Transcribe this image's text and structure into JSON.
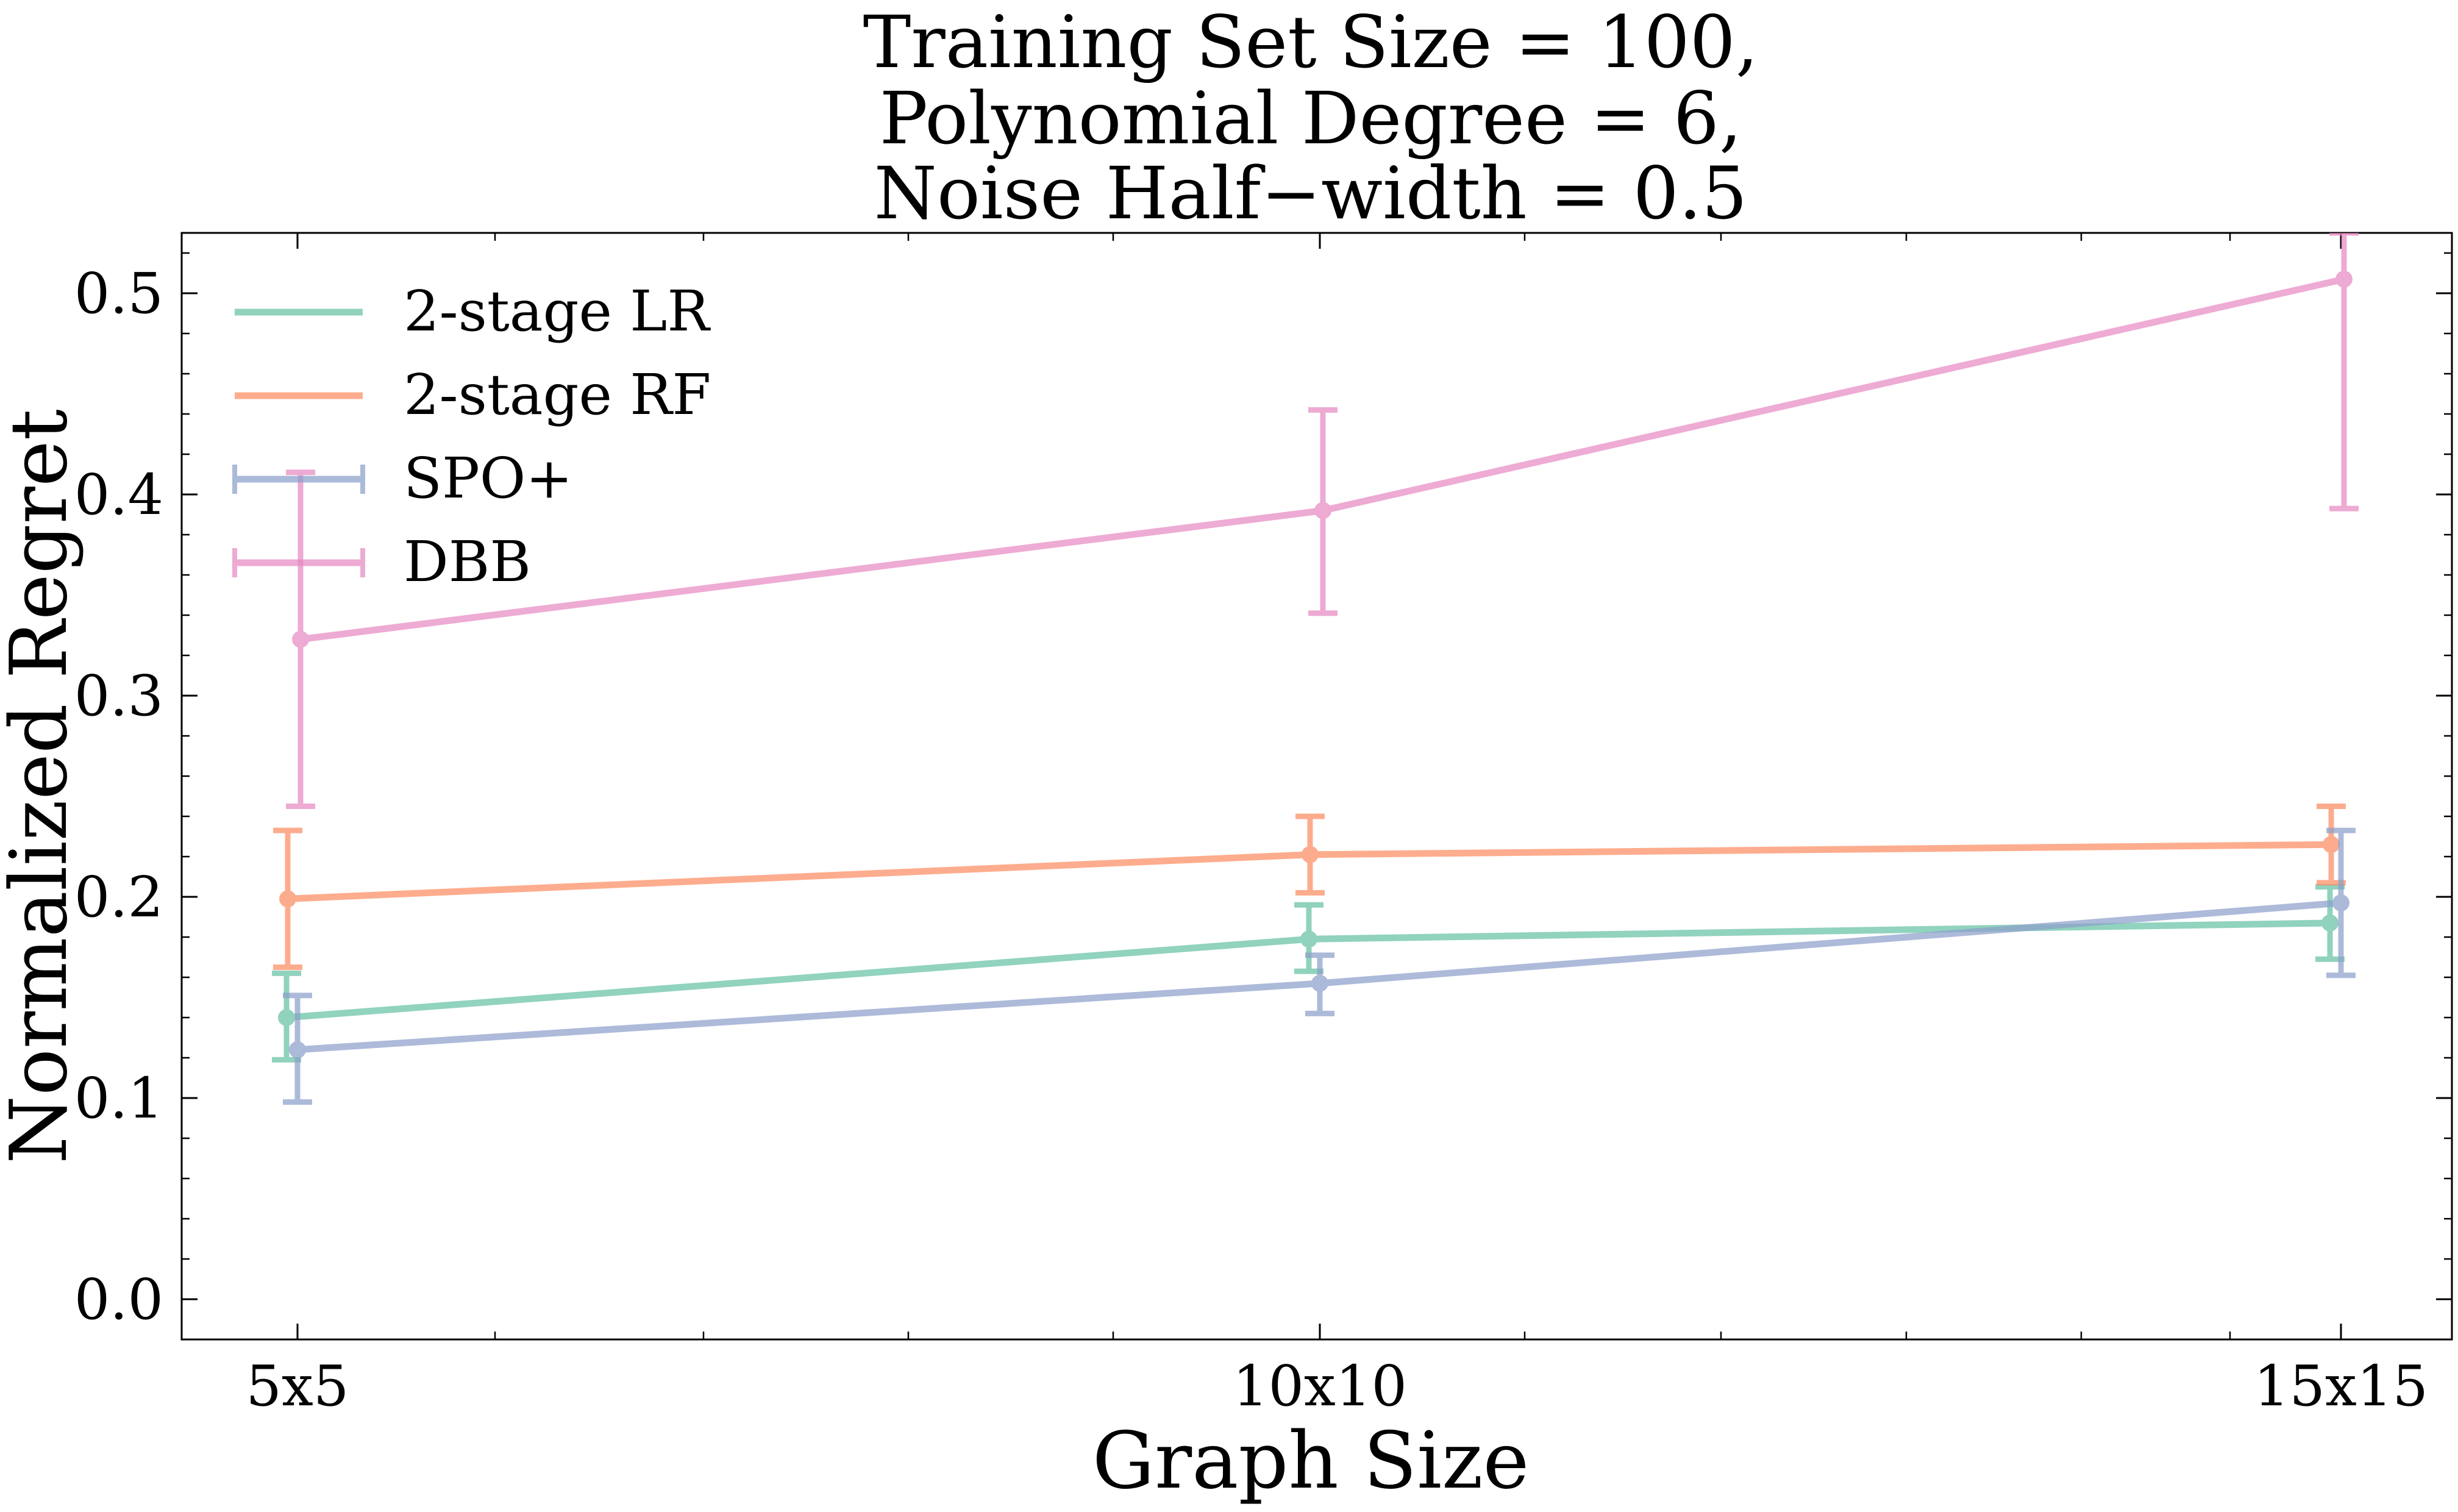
{
  "chart_data": {
    "type": "line",
    "title": [
      "Training Set Size = 100,",
      "Polynomial Degree = 6,",
      "Noise Half−width = 0.5"
    ],
    "xlabel": "Graph Size",
    "ylabel": "Normalized Regret",
    "categories": [
      "5x5",
      "10x10",
      "15x15"
    ],
    "ylim": [
      -0.02,
      0.53
    ],
    "yticks": [
      0.0,
      0.1,
      0.2,
      0.3,
      0.4,
      0.5
    ],
    "ytick_labels": [
      "0.0",
      "0.1",
      "0.2",
      "0.3",
      "0.4",
      "0.5"
    ],
    "grid": false,
    "legend_position": "top-left",
    "series": [
      {
        "name": "2-stage LR",
        "color": "#66c2a5",
        "values": [
          0.14,
          0.179,
          0.187
        ],
        "err_low": [
          0.119,
          0.163,
          0.169
        ],
        "err_high": [
          0.162,
          0.196,
          0.205
        ]
      },
      {
        "name": "2-stage RF",
        "color": "#fc8d62",
        "values": [
          0.199,
          0.221,
          0.226
        ],
        "err_low": [
          0.165,
          0.202,
          0.207
        ],
        "err_high": [
          0.233,
          0.24,
          0.245
        ]
      },
      {
        "name": "SPO+",
        "color": "#8da0cb",
        "values": [
          0.124,
          0.157,
          0.197
        ],
        "err_low": [
          0.098,
          0.142,
          0.161
        ],
        "err_high": [
          0.151,
          0.171,
          0.233
        ]
      },
      {
        "name": "DBB",
        "color": "#e78ac3",
        "values": [
          0.328,
          0.392,
          0.507
        ],
        "err_low": [
          0.245,
          0.341,
          0.393
        ],
        "err_high": [
          0.411,
          0.442,
          0.53
        ]
      }
    ]
  }
}
